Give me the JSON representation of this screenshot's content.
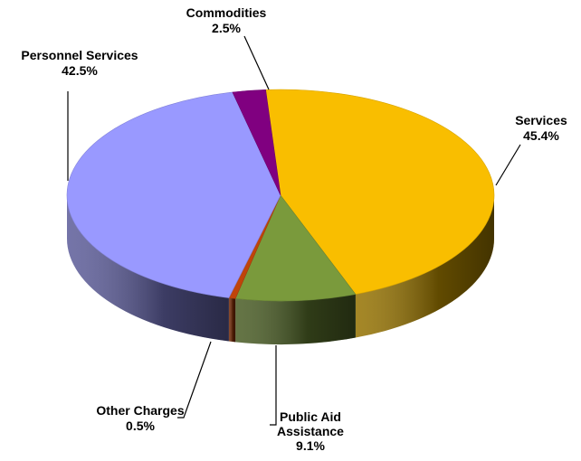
{
  "chart_data": {
    "type": "pie",
    "slices": [
      {
        "label": "Services",
        "value": 45.4,
        "value_label": "45.4%",
        "color": "#F9BE00"
      },
      {
        "label": "Public Aid Assistance",
        "label_lines": [
          "Public Aid",
          "Assistance"
        ],
        "value": 9.1,
        "value_label": "9.1%",
        "color": "#7A9A3C"
      },
      {
        "label": "Other Charges",
        "value": 0.5,
        "value_label": "0.5%",
        "color": "#C0440A"
      },
      {
        "label": "Personnel Services",
        "value": 42.5,
        "value_label": "42.5%",
        "color": "#9999FF"
      },
      {
        "label": "Commodities",
        "value": 2.5,
        "value_label": "2.5%",
        "color": "#800080"
      }
    ],
    "style": "3d",
    "legend": "none",
    "title": ""
  }
}
